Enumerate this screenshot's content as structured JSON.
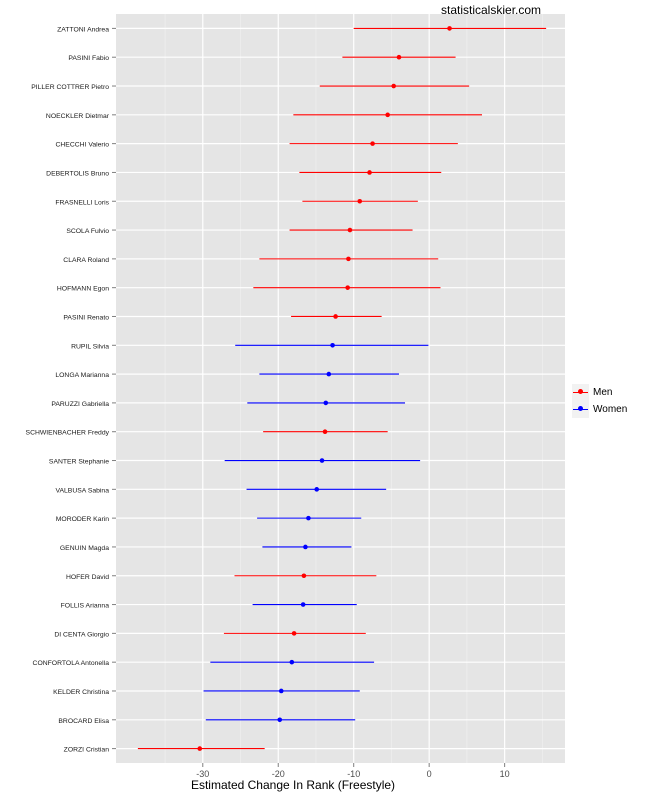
{
  "site_label": "statisticalskier.com",
  "chart_data": {
    "type": "scatter",
    "title": "",
    "xlabel": "Estimated Change In Rank (Freestyle)",
    "ylabel": "",
    "xlim": [
      -41.5,
      18
    ],
    "xticks": [
      -30,
      -20,
      -10,
      0,
      10
    ],
    "grid": true,
    "legend_position": "right",
    "series": [
      {
        "name": "Men",
        "color": "#ff0000"
      },
      {
        "name": "Women",
        "color": "#0000ff"
      }
    ],
    "points": [
      {
        "label": "ZATTONI Andrea",
        "series": "Men",
        "estimate": 2.7,
        "low": -10.0,
        "high": 15.5
      },
      {
        "label": "PASINI Fabio",
        "series": "Men",
        "estimate": -4.0,
        "low": -11.5,
        "high": 3.5
      },
      {
        "label": "PILLER COTTRER Pietro",
        "series": "Men",
        "estimate": -4.7,
        "low": -14.5,
        "high": 5.3
      },
      {
        "label": "NOECKLER Dietmar",
        "series": "Men",
        "estimate": -5.5,
        "low": -18.0,
        "high": 7.0
      },
      {
        "label": "CHECCHI Valerio",
        "series": "Men",
        "estimate": -7.5,
        "low": -18.5,
        "high": 3.8
      },
      {
        "label": "DEBERTOLIS Bruno",
        "series": "Men",
        "estimate": -7.9,
        "low": -17.2,
        "high": 1.6
      },
      {
        "label": "FRASNELLI Loris",
        "series": "Men",
        "estimate": -9.2,
        "low": -16.8,
        "high": -1.5
      },
      {
        "label": "SCOLA Fulvio",
        "series": "Men",
        "estimate": -10.5,
        "low": -18.5,
        "high": -2.2
      },
      {
        "label": "CLARA Roland",
        "series": "Men",
        "estimate": -10.7,
        "low": -22.5,
        "high": 1.2
      },
      {
        "label": "HOFMANN Egon",
        "series": "Men",
        "estimate": -10.8,
        "low": -23.3,
        "high": 1.5
      },
      {
        "label": "PASINI Renato",
        "series": "Men",
        "estimate": -12.4,
        "low": -18.3,
        "high": -6.3
      },
      {
        "label": "RUPIL Silvia",
        "series": "Women",
        "estimate": -12.8,
        "low": -25.7,
        "high": -0.1
      },
      {
        "label": "LONGA Marianna",
        "series": "Women",
        "estimate": -13.3,
        "low": -22.5,
        "high": -4.0
      },
      {
        "label": "PARUZZI Gabriella",
        "series": "Women",
        "estimate": -13.7,
        "low": -24.1,
        "high": -3.2
      },
      {
        "label": "SCHWIENBACHER Freddy",
        "series": "Men",
        "estimate": -13.8,
        "low": -22.0,
        "high": -5.5
      },
      {
        "label": "SANTER Stephanie",
        "series": "Women",
        "estimate": -14.2,
        "low": -27.1,
        "high": -1.2
      },
      {
        "label": "VALBUSA Sabina",
        "series": "Women",
        "estimate": -14.9,
        "low": -24.2,
        "high": -5.7
      },
      {
        "label": "MORODER Karin",
        "series": "Women",
        "estimate": -16.0,
        "low": -22.8,
        "high": -9.0
      },
      {
        "label": "GENUIN Magda",
        "series": "Women",
        "estimate": -16.4,
        "low": -22.1,
        "high": -10.3
      },
      {
        "label": "HOFER David",
        "series": "Men",
        "estimate": -16.6,
        "low": -25.8,
        "high": -7.0
      },
      {
        "label": "FOLLIS Arianna",
        "series": "Women",
        "estimate": -16.7,
        "low": -23.4,
        "high": -9.6
      },
      {
        "label": "DI CENTA Giorgio",
        "series": "Men",
        "estimate": -17.9,
        "low": -27.2,
        "high": -8.4
      },
      {
        "label": "CONFORTOLA Antonella",
        "series": "Women",
        "estimate": -18.2,
        "low": -29.0,
        "high": -7.3
      },
      {
        "label": "KELDER Christina",
        "series": "Women",
        "estimate": -19.6,
        "low": -29.9,
        "high": -9.2
      },
      {
        "label": "BROCARD Elisa",
        "series": "Women",
        "estimate": -19.8,
        "low": -29.6,
        "high": -9.8
      },
      {
        "label": "ZORZI Cristian",
        "series": "Men",
        "estimate": -30.4,
        "low": -38.6,
        "high": -21.8
      }
    ]
  }
}
